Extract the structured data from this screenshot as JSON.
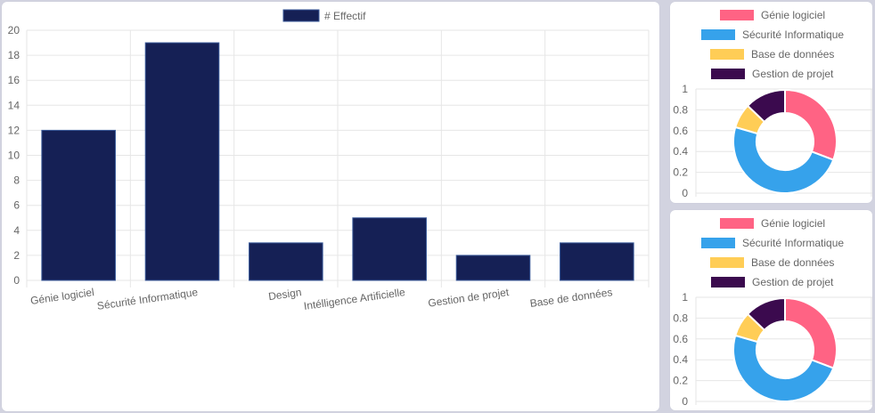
{
  "colors": {
    "bar_fill": "#152055",
    "bar_border": "#3a5a9a",
    "grid": "#e6e6e6",
    "text": "#666666"
  },
  "chart_data": [
    {
      "type": "bar",
      "legend": [
        "# Effectif"
      ],
      "legend_position": "top",
      "categories": [
        "Génie logiciel",
        "Sécurité Informatique",
        "Design",
        "Intélligence Artificielle",
        "Gestion de projet",
        "Base de données"
      ],
      "series": [
        {
          "name": "# Effectif",
          "values": [
            12,
            19,
            3,
            5,
            2,
            3
          ]
        }
      ],
      "ylim": [
        0,
        20
      ],
      "yticks": [
        "0",
        "2",
        "4",
        "6",
        "8",
        "10",
        "12",
        "14",
        "16",
        "18",
        "20"
      ],
      "grid": true
    },
    {
      "type": "pie",
      "variant": "doughnut",
      "legend_position": "top",
      "labels": [
        "Génie logiciel",
        "Sécurité Informatique",
        "Base de données",
        "Gestion de projet"
      ],
      "values": [
        12,
        19,
        3,
        5
      ],
      "colors": [
        "#ff6384",
        "#36a2eb",
        "#ffcd56",
        "#3b0a4e"
      ],
      "yticks": [
        "0",
        "0.2",
        "0.4",
        "0.6",
        "0.8",
        "1"
      ],
      "grid": true
    },
    {
      "type": "pie",
      "variant": "doughnut",
      "legend_position": "top",
      "labels": [
        "Génie logiciel",
        "Sécurité Informatique",
        "Base de données",
        "Gestion de projet"
      ],
      "values": [
        12,
        19,
        3,
        5
      ],
      "colors": [
        "#ff6384",
        "#36a2eb",
        "#ffcd56",
        "#3b0a4e"
      ],
      "yticks": [
        "0",
        "0.2",
        "0.4",
        "0.6",
        "0.8",
        "1"
      ],
      "grid": true
    }
  ]
}
